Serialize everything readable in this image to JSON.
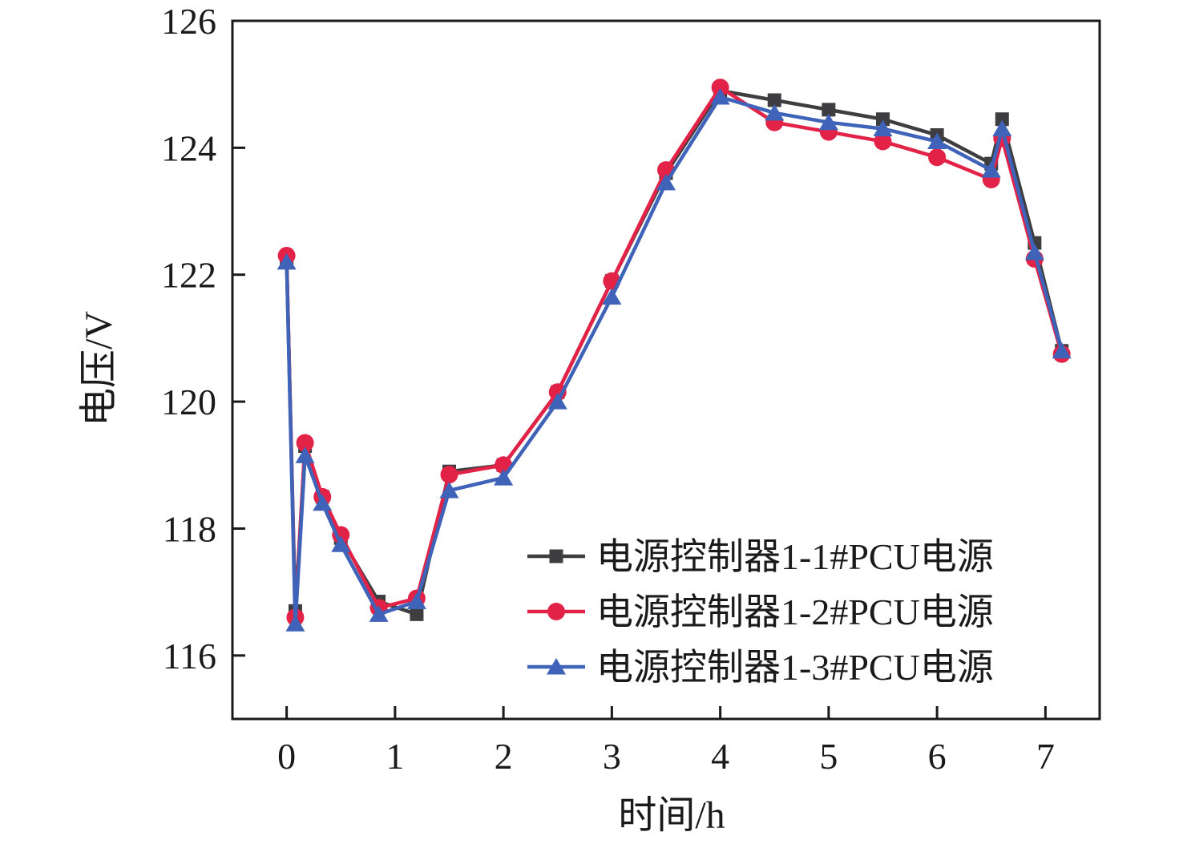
{
  "figure": {
    "background": "#ffffff",
    "axis_color": "#1a1a1a"
  },
  "chart_data": {
    "type": "line",
    "title": "",
    "xlabel": "时间/h",
    "ylabel": "电压/V",
    "xlim": [
      -0.5,
      7.5
    ],
    "ylim": [
      115,
      126
    ],
    "xticks": [
      0,
      1,
      2,
      3,
      4,
      5,
      6,
      7
    ],
    "yticks": [
      116,
      118,
      120,
      122,
      124,
      126
    ],
    "grid": false,
    "legend_position": "inside-lower-right",
    "x": [
      0,
      0.08,
      0.17,
      0.33,
      0.5,
      0.85,
      1.2,
      1.5,
      2,
      2.5,
      3,
      3.5,
      4,
      4.5,
      5,
      5.5,
      6,
      6.5,
      6.6,
      6.9,
      7.15
    ],
    "series": [
      {
        "name": "电源控制器1-1#PCU电源",
        "color": "#3e3e40",
        "marker": "square",
        "values": [
          122.25,
          116.7,
          119.3,
          118.5,
          117.85,
          116.85,
          116.65,
          118.9,
          119.0,
          120.15,
          121.9,
          123.6,
          124.9,
          124.75,
          124.6,
          124.45,
          124.2,
          123.75,
          124.45,
          122.5,
          120.8
        ]
      },
      {
        "name": "电源控制器1-2#PCU电源",
        "color": "#e32248",
        "marker": "circle",
        "values": [
          122.3,
          116.6,
          119.35,
          118.5,
          117.9,
          116.75,
          116.9,
          118.85,
          119.0,
          120.15,
          121.9,
          123.65,
          124.95,
          124.4,
          124.25,
          124.1,
          123.85,
          123.5,
          124.15,
          122.25,
          120.75
        ]
      },
      {
        "name": "电源控制器1-3#PCU电源",
        "color": "#3e63b8",
        "marker": "triangle",
        "values": [
          122.2,
          116.5,
          119.15,
          118.4,
          117.75,
          116.65,
          116.85,
          118.6,
          118.8,
          120.0,
          121.65,
          123.45,
          124.8,
          124.55,
          124.4,
          124.3,
          124.1,
          123.65,
          124.3,
          122.35,
          120.8
        ]
      }
    ]
  }
}
